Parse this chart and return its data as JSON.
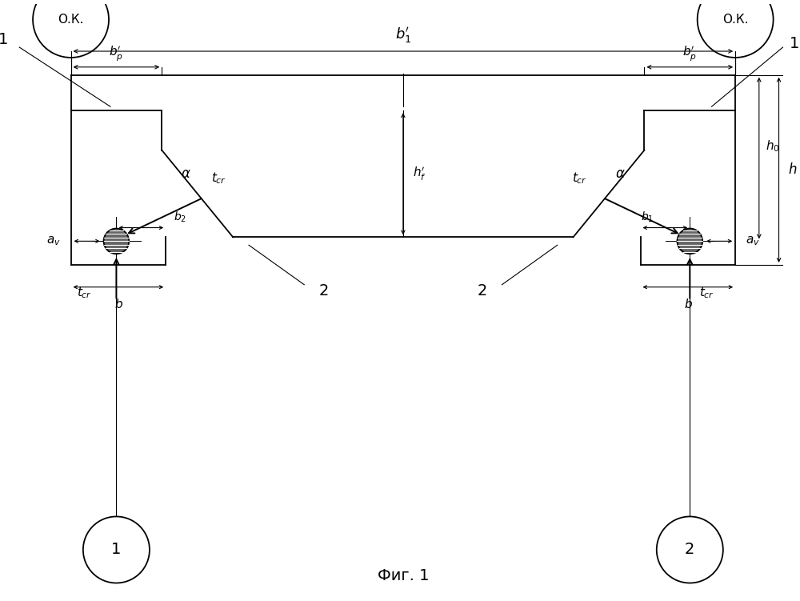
{
  "bg_color": "#ffffff",
  "line_color": "#000000",
  "fig_caption": "Фиг. 1",
  "fig_size": [
    10.0,
    7.51
  ],
  "dpi": 100,
  "lw": 1.3,
  "thin_lw": 0.8,
  "ok_text": "О.К.",
  "label1": "1",
  "label2": "2"
}
